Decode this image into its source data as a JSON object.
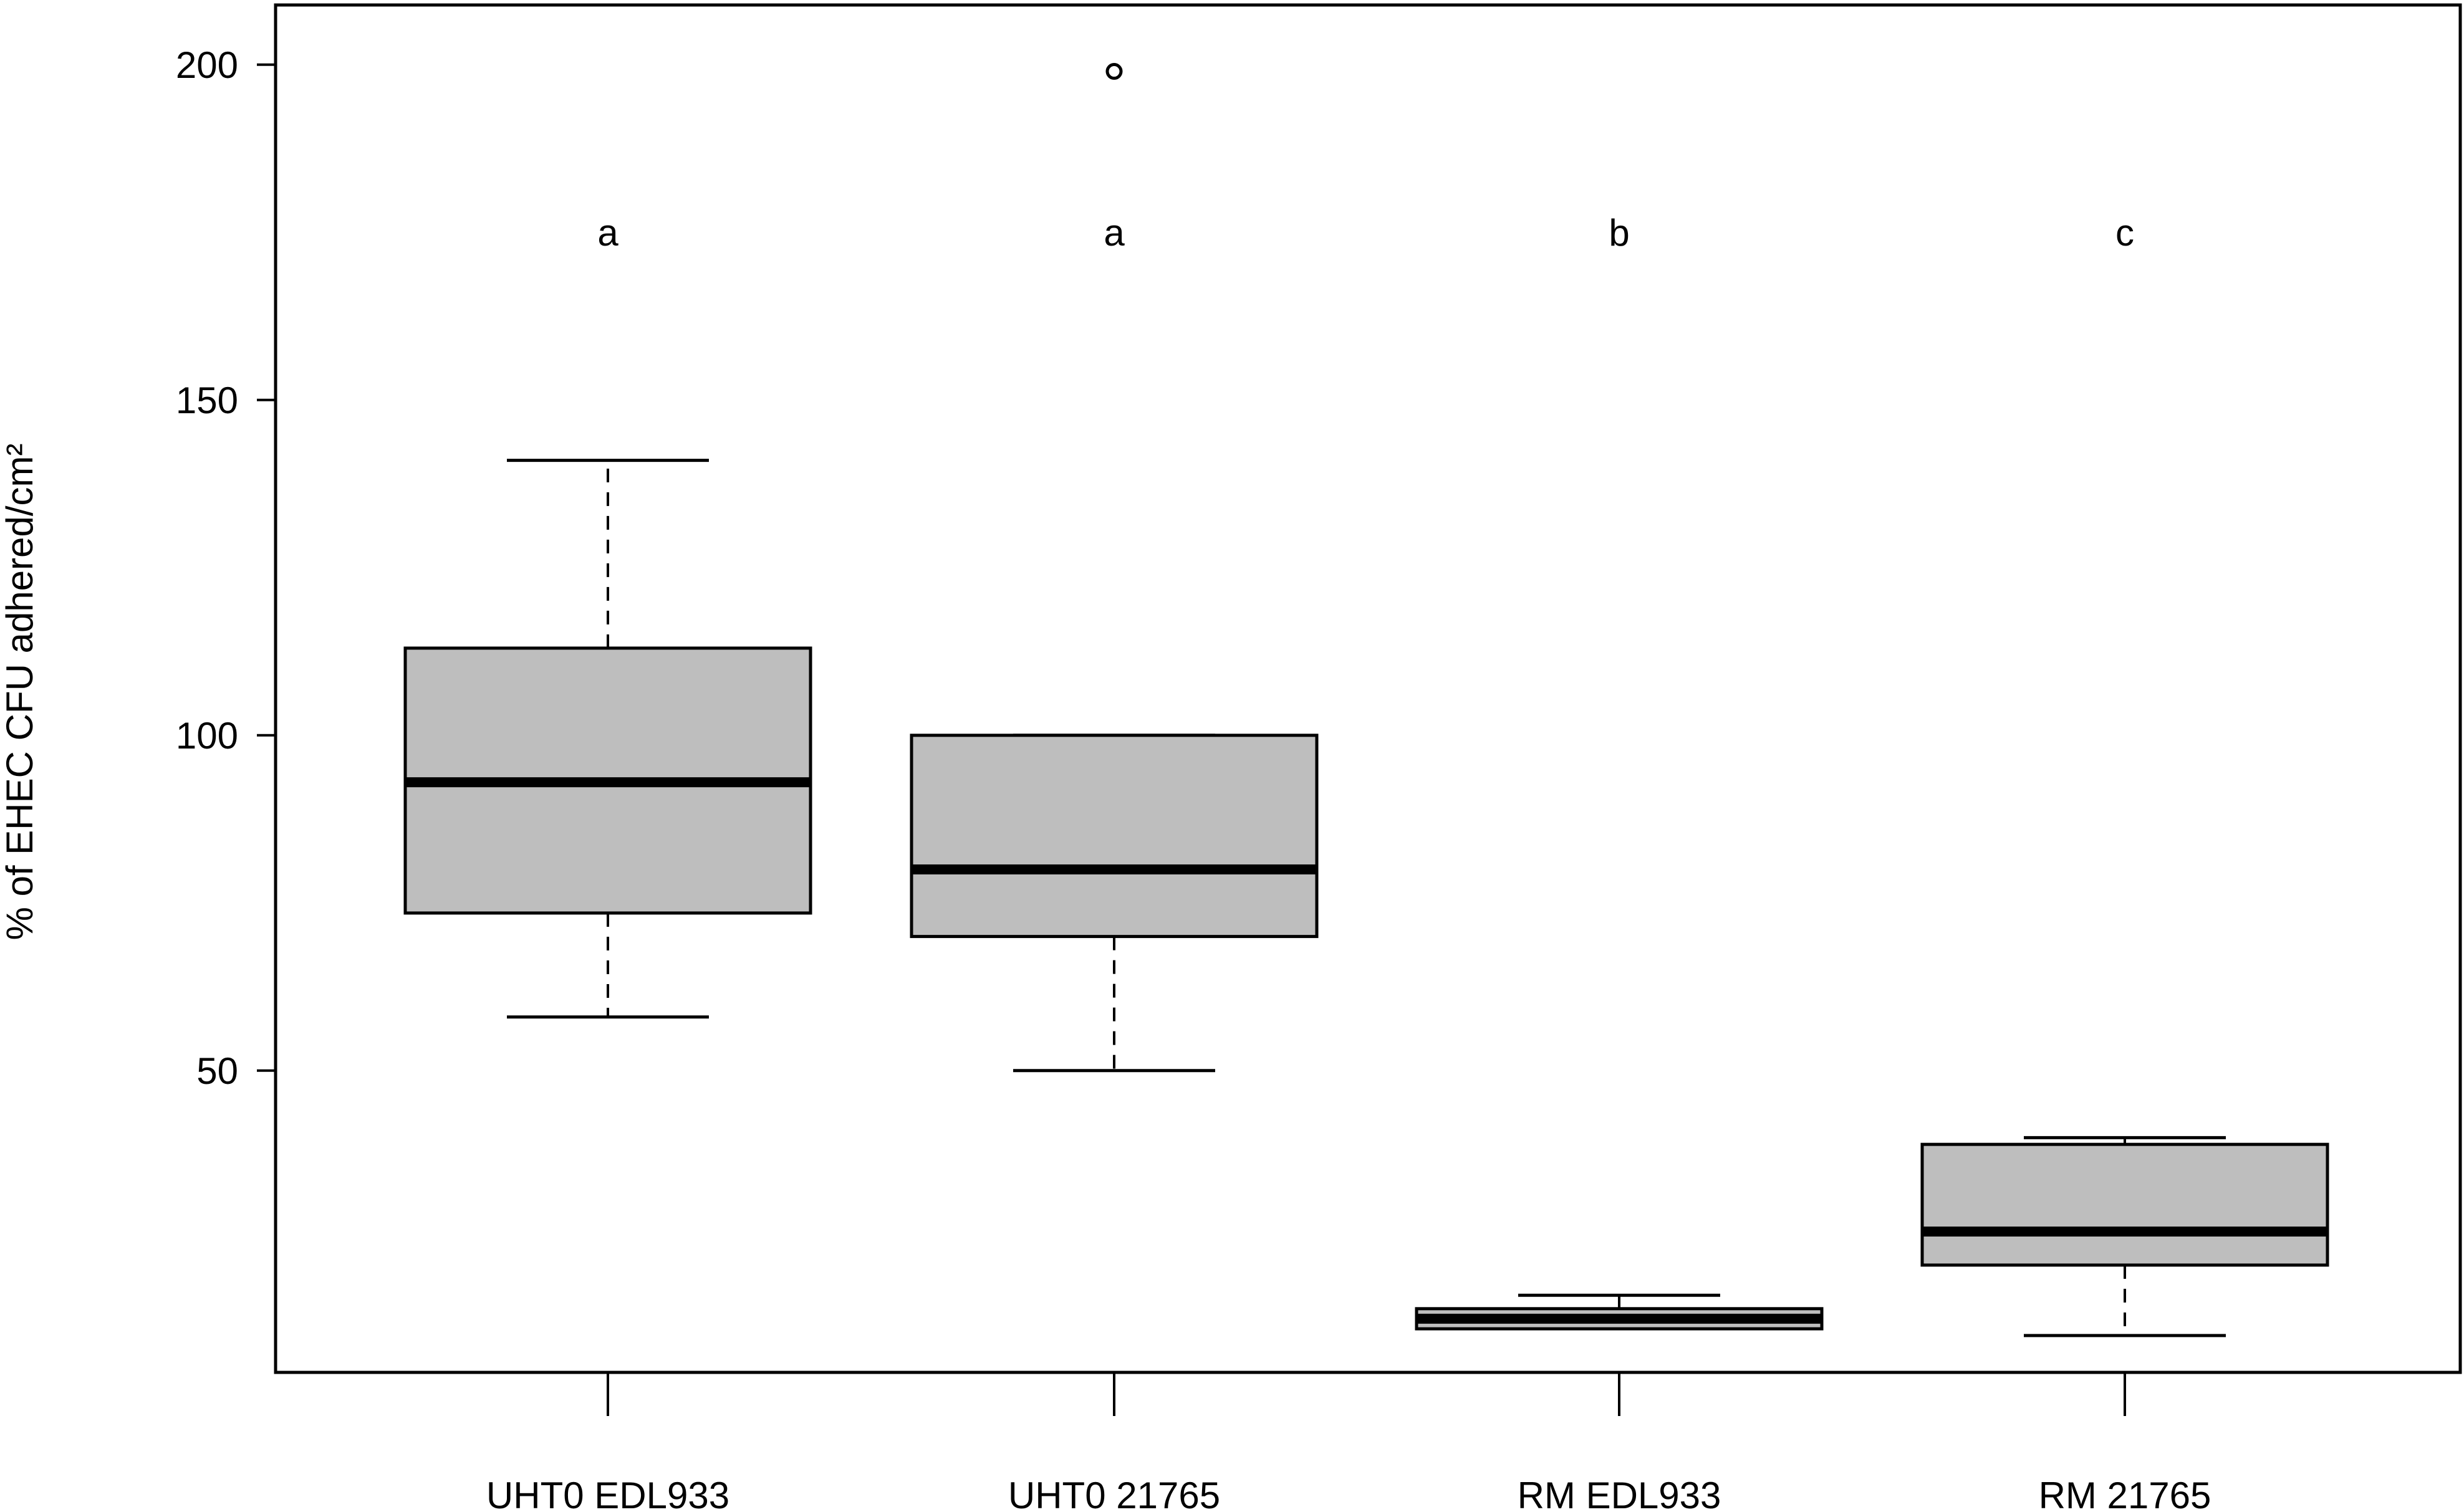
{
  "chart_data": {
    "type": "boxplot",
    "ylabel": "% of EHEC CFU adhered/cm²",
    "xlabel": "",
    "ylim": [
      5,
      205
    ],
    "yticks": [
      50,
      100,
      150,
      200
    ],
    "grid": false,
    "legend": "none",
    "colors": {
      "box_fill": "#bebebe",
      "line": "#000000"
    },
    "categories": [
      "UHT0 EDL933",
      "UHT0 21765",
      "RM EDL933",
      "RM 21765"
    ],
    "boxes": [
      {
        "category": "UHT0 EDL933",
        "whisker_low": 58,
        "q1": 73.5,
        "median": 93,
        "q3": 113,
        "whisker_high": 141,
        "outliers": [],
        "letter": "a"
      },
      {
        "category": "UHT0 21765",
        "whisker_low": 50,
        "q1": 70,
        "median": 80,
        "q3": 100,
        "whisker_high": 100,
        "outliers": [
          199
        ],
        "letter": "a"
      },
      {
        "category": "RM EDL933",
        "whisker_low": 11.5,
        "q1": 11.5,
        "median": 13,
        "q3": 14.5,
        "whisker_high": 16.5,
        "outliers": [],
        "letter": "b"
      },
      {
        "category": "RM 21765",
        "whisker_low": 10.5,
        "q1": 21,
        "median": 26,
        "q3": 39,
        "whisker_high": 40,
        "outliers": [],
        "letter": "c"
      }
    ],
    "letter_y": 175
  }
}
